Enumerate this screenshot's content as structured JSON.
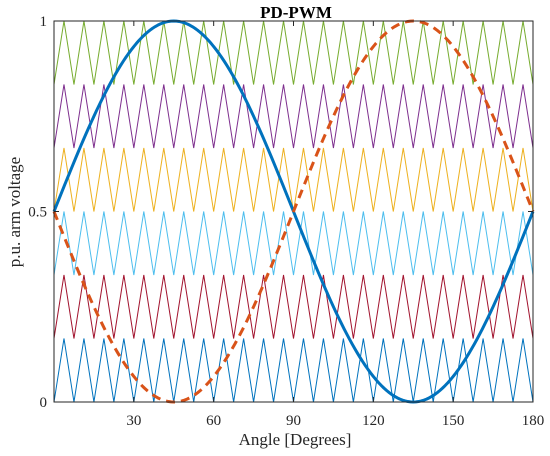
{
  "chart_data": {
    "type": "line",
    "title": "PD-PWM",
    "xlabel": "Angle [Degrees]",
    "ylabel": "p.u. arm voltage",
    "xlim": [
      0,
      180
    ],
    "ylim": [
      0,
      1
    ],
    "x_ticks": [
      30,
      60,
      90,
      120,
      150,
      180
    ],
    "y_ticks": [
      0,
      0.5,
      1
    ],
    "x_tick_labels": [
      "30",
      "60",
      "90",
      "120",
      "150",
      "180"
    ],
    "y_tick_labels": [
      "0",
      "0.5",
      "1"
    ],
    "grid": false,
    "carriers": {
      "description_count": 6,
      "periods_per_cycle": 24,
      "bands": [
        {
          "min": 0.0,
          "max": 0.1667,
          "color": "#0072BD"
        },
        {
          "min": 0.1667,
          "max": 0.3333,
          "color": "#A2142F"
        },
        {
          "min": 0.3333,
          "max": 0.5,
          "color": "#4DBEEE"
        },
        {
          "min": 0.5,
          "max": 0.6667,
          "color": "#EDB120"
        },
        {
          "min": 0.6667,
          "max": 0.8333,
          "color": "#7E2F8E"
        },
        {
          "min": 0.8333,
          "max": 1.0,
          "color": "#77AC30"
        }
      ]
    },
    "series": [
      {
        "style": "solid",
        "color": "#0072BD",
        "x": [
          0,
          15,
          30,
          45,
          60,
          75,
          90,
          105,
          120,
          135,
          150,
          165,
          180
        ],
        "y": [
          0.5,
          0.854,
          0.983,
          1.0,
          0.983,
          0.854,
          0.5,
          0.146,
          0.017,
          0.0,
          0.017,
          0.146,
          0.5
        ]
      },
      {
        "style": "dashed",
        "color": "#D95319",
        "x": [
          0,
          15,
          30,
          45,
          60,
          75,
          90,
          105,
          120,
          135,
          150,
          165,
          180
        ],
        "y": [
          0.5,
          0.146,
          0.017,
          0.0,
          0.017,
          0.146,
          0.5,
          0.854,
          0.983,
          1.0,
          0.983,
          0.854,
          0.5
        ]
      }
    ]
  }
}
